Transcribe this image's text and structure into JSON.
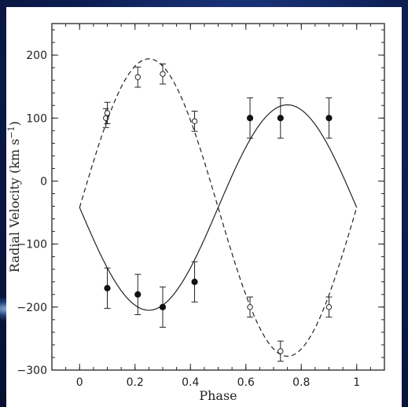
{
  "chart_data": {
    "type": "scatter",
    "xlabel": "Phase",
    "ylabel": "Radial Velocity (km s",
    "ylabel_sup": "−1",
    "ylabel_close": ")",
    "xlim": [
      -0.1,
      1.1
    ],
    "ylim": [
      -300,
      250
    ],
    "xticks": [
      0,
      0.2,
      0.4,
      0.6,
      0.8,
      1
    ],
    "xtick_labels": [
      "0",
      "0.2",
      "0.4",
      "0.6",
      "0.8",
      "1"
    ],
    "yticks": [
      -300,
      -200,
      -100,
      0,
      100,
      200
    ],
    "ytick_labels": [
      "−300",
      "−200",
      "−100",
      "0",
      "100",
      "200"
    ],
    "series": [
      {
        "marker": "filled-circle",
        "points": [
          {
            "x": 0.1,
            "y": -170,
            "err": 32
          },
          {
            "x": 0.21,
            "y": -180,
            "err": 32
          },
          {
            "x": 0.3,
            "y": -200,
            "err": 32
          },
          {
            "x": 0.415,
            "y": -160,
            "err": 32
          },
          {
            "x": 0.615,
            "y": 100,
            "err": 32
          },
          {
            "x": 0.725,
            "y": 100,
            "err": 32
          },
          {
            "x": 0.9,
            "y": 100,
            "err": 32
          }
        ]
      },
      {
        "marker": "open-circle",
        "points": [
          {
            "x": 0.095,
            "y": 100,
            "err": 15
          },
          {
            "x": 0.1,
            "y": 108,
            "err": 17
          },
          {
            "x": 0.21,
            "y": 165,
            "err": 16
          },
          {
            "x": 0.3,
            "y": 170,
            "err": 16
          },
          {
            "x": 0.415,
            "y": 95,
            "err": 16
          },
          {
            "x": 0.615,
            "y": -200,
            "err": 16
          },
          {
            "x": 0.725,
            "y": -270,
            "err": 16
          },
          {
            "x": 0.9,
            "y": -200,
            "err": 16
          }
        ]
      }
    ],
    "curves": [
      {
        "style": "solid",
        "gamma": -42,
        "K": 163,
        "phase_shift": 0.75
      },
      {
        "style": "dashed",
        "gamma": -42,
        "K": 236,
        "phase_shift": 0.25
      }
    ]
  }
}
